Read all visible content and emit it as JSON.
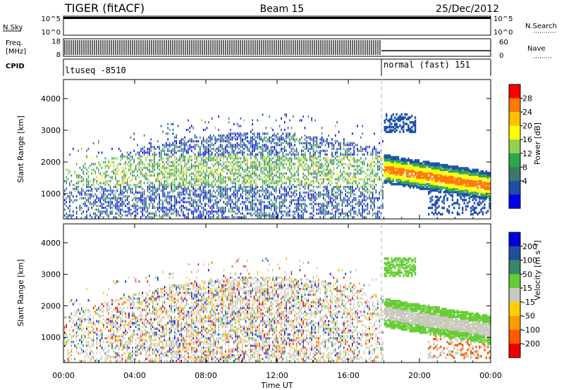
{
  "header": {
    "station": "TIGER (fitACF)",
    "beam": "Beam 15",
    "date": "25/Dec/2012"
  },
  "strips": {
    "nsky_label": "N.Sky",
    "nsky_ticks": [
      "10^5",
      "10^0"
    ],
    "nsearch_label": "N.Search",
    "nsearch_ticks": [
      "10^5",
      "10^0"
    ],
    "freq_label_line1": "Freq.",
    "freq_label_line2": "[MHz]",
    "freq_ticks": [
      "18",
      "8"
    ],
    "nave_label": "Nave",
    "nave_ticks": [
      "60",
      "0"
    ],
    "cpid_label": "CPID",
    "cpid_segments": [
      {
        "label": "ltuseq -8510",
        "start_hour": 0
      },
      {
        "label": "normal (fast) 151",
        "start_hour": 18
      }
    ]
  },
  "colors": {
    "power": [
      "#0000ee",
      "#1d4fa8",
      "#3b7a6b",
      "#2ea64a",
      "#92d050",
      "#ffff00",
      "#ffc000",
      "#ff7a00",
      "#ff0000"
    ],
    "velocity": [
      "#ee0000",
      "#ff5a00",
      "#ff9a00",
      "#ffd000",
      "#c8c8bc",
      "#66cc33",
      "#338866",
      "#1d4f9c",
      "#0000dd"
    ]
  },
  "chart_data": [
    {
      "type": "heatmap",
      "name": "power",
      "xlabel": "Time UT",
      "ylabel": "Slant Range [km]",
      "x_ticks": [
        "00:00",
        "04:00",
        "08:00",
        "12:00",
        "16:00",
        "20:00",
        "00:00"
      ],
      "xlim_hours": [
        0,
        24
      ],
      "ylim": [
        200,
        4600
      ],
      "y_ticks": [
        1000,
        2000,
        3000,
        4000
      ],
      "colorbar_label": "Power [dB]",
      "colorbar_ticks": [
        4,
        8,
        12,
        16,
        20,
        24,
        28
      ],
      "colorbar_range": [
        0,
        32
      ]
    },
    {
      "type": "heatmap",
      "name": "velocity",
      "xlabel": "Time UT",
      "ylabel": "Slant Range [km]",
      "x_ticks": [
        "00:00",
        "04:00",
        "08:00",
        "12:00",
        "16:00",
        "20:00",
        "00:00"
      ],
      "xlim_hours": [
        0,
        24
      ],
      "ylim": [
        200,
        4600
      ],
      "y_ticks": [
        1000,
        2000,
        3000,
        4000
      ],
      "colorbar_label": "Velocity [m s⁻¹]",
      "colorbar_ticks": [
        "200",
        "100",
        "50",
        "15",
        "-15",
        "-50",
        "-100",
        "-200"
      ]
    }
  ]
}
